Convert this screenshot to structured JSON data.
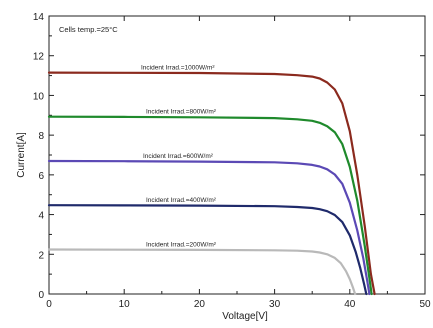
{
  "chart_data": {
    "type": "line",
    "title": "",
    "xlabel": "Voltage[V]",
    "ylabel": "Current[A]",
    "xlim": [
      0,
      50
    ],
    "ylim": [
      0,
      14
    ],
    "xticks": [
      "0",
      "10",
      "20",
      "30",
      "40",
      "50"
    ],
    "yticks": [
      "0",
      "2",
      "4",
      "6",
      "8",
      "10",
      "12",
      "14"
    ],
    "grid": false,
    "annotation": "Cells temp.=25°C",
    "series": [
      {
        "label": "Incident Irrad.=1000W/m²",
        "color": "#8b2a1e",
        "x": [
          0,
          10,
          20,
          30,
          33,
          35,
          36,
          37,
          38,
          39,
          40,
          41,
          42,
          42.8,
          43.3
        ],
        "y": [
          11.15,
          11.14,
          11.13,
          11.08,
          11.02,
          10.95,
          10.85,
          10.65,
          10.3,
          9.6,
          8.2,
          6.0,
          3.4,
          1.0,
          0
        ]
      },
      {
        "label": "Incident Irrad.=800W/m²",
        "color": "#1f8a2c",
        "x": [
          0,
          10,
          20,
          30,
          33,
          35,
          36,
          37,
          38,
          39,
          40,
          41,
          42,
          42.6,
          42.9
        ],
        "y": [
          8.93,
          8.92,
          8.9,
          8.86,
          8.8,
          8.72,
          8.62,
          8.45,
          8.15,
          7.55,
          6.4,
          4.7,
          2.4,
          0.8,
          0
        ]
      },
      {
        "label": "Incident Irrad.=600W/m²",
        "color": "#5b49b5",
        "x": [
          0,
          10,
          20,
          30,
          33,
          35,
          36,
          37,
          38,
          39,
          40,
          41,
          41.8,
          42.3,
          42.6
        ],
        "y": [
          6.7,
          6.69,
          6.67,
          6.63,
          6.58,
          6.5,
          6.42,
          6.28,
          6.02,
          5.55,
          4.6,
          3.2,
          1.8,
          0.7,
          0
        ]
      },
      {
        "label": "Incident Irrad.=400W/m²",
        "color": "#1f2a6b",
        "x": [
          0,
          10,
          20,
          30,
          33,
          35,
          36,
          37,
          38,
          39,
          40,
          40.8,
          41.4,
          41.9,
          42.2
        ],
        "y": [
          4.47,
          4.46,
          4.45,
          4.42,
          4.38,
          4.33,
          4.27,
          4.17,
          3.98,
          3.62,
          2.95,
          2.1,
          1.3,
          0.5,
          0
        ]
      },
      {
        "label": "Incident Irrad.=200W/m²",
        "color": "#b9b9b9",
        "x": [
          0,
          10,
          20,
          30,
          33,
          35,
          36,
          37,
          38,
          38.8,
          39.5,
          40.0,
          40.4,
          40.7
        ],
        "y": [
          2.24,
          2.23,
          2.22,
          2.2,
          2.18,
          2.14,
          2.09,
          2.0,
          1.82,
          1.55,
          1.15,
          0.75,
          0.35,
          0
        ]
      }
    ]
  }
}
